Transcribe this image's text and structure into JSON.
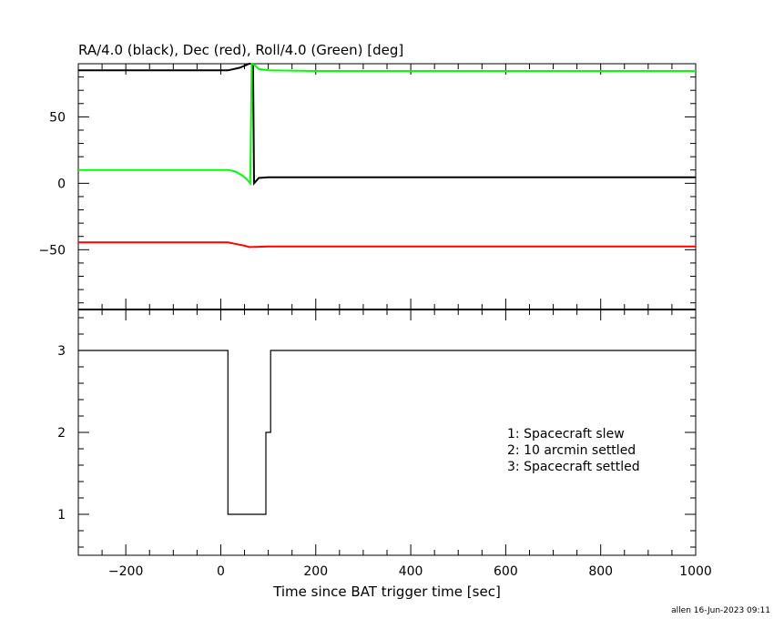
{
  "chart_data": [
    {
      "type": "line",
      "title": "RA/4.0 (black), Dec (red), Roll/4.0 (Green) [deg]",
      "xlim": [
        -300,
        1000
      ],
      "ylim": [
        -95,
        90
      ],
      "yticks": [
        -50,
        0,
        50
      ],
      "yticklabels": [
        "−50",
        "0",
        "50"
      ],
      "series": [
        {
          "name": "RA/4.0",
          "color": "#000000",
          "x": [
            -300,
            15,
            40,
            60,
            68,
            70,
            80,
            100,
            200,
            1000
          ],
          "y": [
            85,
            85,
            87,
            90,
            91,
            0,
            4,
            4.5,
            4.5,
            4.5
          ]
        },
        {
          "name": "Dec",
          "color": "#ff0000",
          "x": [
            -300,
            15,
            30,
            50,
            60,
            80,
            100,
            1000
          ],
          "y": [
            -44.5,
            -44.5,
            -45.5,
            -47,
            -48,
            -47.8,
            -47.5,
            -47.5
          ]
        },
        {
          "name": "Roll/4.0",
          "color": "#00ff00",
          "x": [
            -300,
            15,
            30,
            45,
            55,
            62,
            65,
            68,
            80,
            100,
            200,
            1000
          ],
          "y": [
            10,
            10,
            9,
            6,
            3,
            0,
            92,
            90,
            86,
            85,
            84.5,
            84.5
          ]
        }
      ]
    },
    {
      "type": "line",
      "step": true,
      "xlim": [
        -300,
        1000
      ],
      "ylim": [
        0.5,
        3.5
      ],
      "xticks": [
        -200,
        0,
        200,
        400,
        600,
        800,
        1000
      ],
      "xticklabels": [
        "−200",
        "0",
        "200",
        "400",
        "600",
        "800",
        "1000"
      ],
      "yticks": [
        1,
        2,
        3
      ],
      "yticklabels": [
        "1",
        "2",
        "3"
      ],
      "xlabel": "Time since BAT trigger time [sec]",
      "series": [
        {
          "x": [
            -300,
            15,
            95,
            105,
            1000
          ],
          "y": [
            3,
            1,
            2,
            3,
            3
          ]
        }
      ],
      "legend_placement": "lower-right",
      "legend": [
        "1: Spacecraft slew",
        "2: 10 arcmin settled",
        "3: Spacecraft settled"
      ]
    }
  ],
  "footer": "allen 16-Jun-2023 09:11"
}
